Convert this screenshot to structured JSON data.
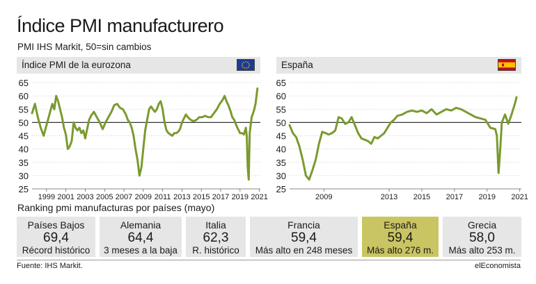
{
  "header": {
    "title": "Índice PMI manufacturero",
    "subtitle": "PMI IHS Markit, 50=sin cambios"
  },
  "panels": {
    "eurozone_label": "Índice PMI de la eurozona",
    "spain_label": "España",
    "eurozone_flag": "eu-flag-icon",
    "spain_flag": "spain-flag-icon"
  },
  "colors": {
    "line": "#7a9a2e",
    "reference": "#333333",
    "highlight_box": "#c9c563",
    "box": "#e6e6e6",
    "panel_header": "#e6e6e6"
  },
  "chart_data": [
    {
      "type": "line",
      "title": "Índice PMI de la eurozona",
      "ylim": [
        25,
        65
      ],
      "yticks": [
        "25",
        "30",
        "35",
        "40",
        "45",
        "50",
        "55",
        "60",
        "65"
      ],
      "xlim": [
        1998.0,
        2021.6
      ],
      "xticks": [
        "1999",
        "2001",
        "2003",
        "2005",
        "2007",
        "2009",
        "2011",
        "2013",
        "2015",
        "2017",
        "2019",
        "2021"
      ],
      "reference_line": 50,
      "grid": true,
      "series": [
        {
          "x": [
            1998.0,
            1998.3,
            1998.6,
            1998.9,
            1999.2,
            1999.5,
            1999.8,
            2000.1,
            2000.3,
            2000.5,
            2000.7,
            2000.9,
            2001.1,
            2001.3,
            2001.5,
            2001.7,
            2001.9,
            2002.1,
            2002.3,
            2002.5,
            2002.7,
            2002.9,
            2003.1,
            2003.3,
            2003.5,
            2003.7,
            2003.9,
            2004.1,
            2004.4,
            2004.7,
            2005.0,
            2005.3,
            2005.6,
            2005.9,
            2006.2,
            2006.5,
            2006.8,
            2007.1,
            2007.4,
            2007.7,
            2007.9,
            2008.1,
            2008.3,
            2008.5,
            2008.7,
            2008.9,
            2009.0,
            2009.1,
            2009.3,
            2009.5,
            2009.7,
            2009.9,
            2010.1,
            2010.3,
            2010.5,
            2010.7,
            2010.9,
            2011.1,
            2011.3,
            2011.5,
            2011.7,
            2011.9,
            2012.1,
            2012.3,
            2012.5,
            2012.7,
            2012.9,
            2013.1,
            2013.3,
            2013.5,
            2013.7,
            2013.9,
            2014.1,
            2014.4,
            2014.7,
            2015.0,
            2015.3,
            2015.6,
            2015.9,
            2016.2,
            2016.5,
            2016.8,
            2017.1,
            2017.4,
            2017.7,
            2017.9,
            2018.1,
            2018.3,
            2018.5,
            2018.7,
            2018.9,
            2019.1,
            2019.3,
            2019.5,
            2019.7,
            2019.9,
            2020.1,
            2020.2,
            2020.3,
            2020.4,
            2020.5,
            2020.7,
            2020.9,
            2021.1,
            2021.3
          ],
          "values": [
            53.5,
            57.0,
            52.0,
            48.0,
            45.0,
            49.0,
            53.0,
            57.0,
            55.0,
            60.0,
            58.0,
            55.0,
            52.0,
            48.0,
            45.5,
            40.0,
            41.0,
            43.0,
            50.0,
            48.0,
            47.0,
            48.0,
            46.0,
            47.0,
            44.0,
            47.5,
            51.0,
            52.5,
            54.0,
            52.0,
            50.0,
            47.5,
            50.0,
            52.0,
            54.0,
            56.5,
            57.0,
            55.5,
            55.0,
            53.0,
            51.0,
            50.0,
            48.0,
            45.0,
            40.0,
            36.0,
            33.0,
            30.0,
            33.0,
            40.0,
            47.0,
            51.0,
            55.0,
            56.0,
            55.0,
            54.0,
            55.0,
            57.0,
            58.0,
            55.0,
            50.0,
            47.0,
            46.0,
            45.5,
            45.0,
            46.0,
            46.0,
            46.5,
            47.5,
            50.0,
            51.5,
            53.0,
            52.0,
            51.0,
            50.5,
            51.0,
            52.0,
            52.0,
            52.5,
            52.0,
            52.0,
            53.5,
            55.0,
            57.0,
            58.5,
            60.0,
            58.0,
            56.5,
            54.5,
            52.0,
            51.0,
            49.0,
            47.5,
            46.0,
            46.0,
            45.5,
            48.0,
            45.0,
            33.0,
            28.5,
            46.0,
            52.0,
            54.0,
            57.0,
            62.8
          ]
        }
      ]
    },
    {
      "type": "line",
      "title": "España",
      "ylim": [
        25,
        65
      ],
      "yticks": [
        "25",
        "30",
        "35",
        "40",
        "45",
        "50",
        "55",
        "60",
        "65"
      ],
      "xlim": [
        2007.4,
        2021.6
      ],
      "xticks": [
        "2009",
        "2013",
        "2015",
        "2017",
        "2019",
        "2021"
      ],
      "reference_line": 50,
      "grid": true,
      "series": [
        {
          "x": [
            2007.4,
            2007.6,
            2007.8,
            2008.0,
            2008.2,
            2008.4,
            2008.6,
            2008.8,
            2009.0,
            2009.2,
            2009.4,
            2009.6,
            2009.8,
            2010.0,
            2010.2,
            2010.4,
            2010.6,
            2010.8,
            2011.0,
            2011.2,
            2011.4,
            2011.6,
            2011.8,
            2012.0,
            2012.2,
            2012.4,
            2012.6,
            2012.8,
            2013.0,
            2013.2,
            2013.4,
            2013.6,
            2013.8,
            2014.0,
            2014.3,
            2014.6,
            2014.9,
            2015.2,
            2015.5,
            2015.8,
            2016.1,
            2016.4,
            2016.7,
            2017.0,
            2017.3,
            2017.6,
            2017.9,
            2018.2,
            2018.5,
            2018.8,
            2019.1,
            2019.4,
            2019.7,
            2020.0,
            2020.1,
            2020.2,
            2020.3,
            2020.4,
            2020.6,
            2020.8,
            2021.0,
            2021.2,
            2021.3
          ],
          "values": [
            49.0,
            46.0,
            44.5,
            41.0,
            36.0,
            30.0,
            28.5,
            32.0,
            36.0,
            42.0,
            46.5,
            46.0,
            45.5,
            46.0,
            47.0,
            52.0,
            51.5,
            49.5,
            50.0,
            52.0,
            49.0,
            46.0,
            44.0,
            43.5,
            43.0,
            42.0,
            44.5,
            44.0,
            45.0,
            46.0,
            48.0,
            50.0,
            51.0,
            52.5,
            53.0,
            54.0,
            54.5,
            54.0,
            54.5,
            53.5,
            55.0,
            53.0,
            54.0,
            55.0,
            54.5,
            55.5,
            55.0,
            54.0,
            53.0,
            52.0,
            51.5,
            51.0,
            48.0,
            47.5,
            45.0,
            31.0,
            39.5,
            50.0,
            53.0,
            49.5,
            53.0,
            57.0,
            59.5
          ]
        }
      ]
    }
  ],
  "ranking": {
    "title": "Ranking pmi manufacturas por países (mayo)",
    "items": [
      {
        "country": "Países Bajos",
        "value": "69,4",
        "note": "Récord histórico",
        "highlight": false
      },
      {
        "country": "Alemania",
        "value": "64,4",
        "note": "3 meses a la baja",
        "highlight": false
      },
      {
        "country": "Italia",
        "value": "62,3",
        "note": "R. histórico",
        "highlight": false
      },
      {
        "country": "Francia",
        "value": "59,4",
        "note": "Más alto en 248 meses",
        "highlight": false
      },
      {
        "country": "España",
        "value": "59,4",
        "note": "Más alto 276 m.",
        "highlight": true
      },
      {
        "country": "Grecia",
        "value": "58,0",
        "note": "Más alto 253 m.",
        "highlight": false
      }
    ]
  },
  "footer": {
    "source": "Fuente: IHS Markit.",
    "brand": "elEconomista"
  }
}
